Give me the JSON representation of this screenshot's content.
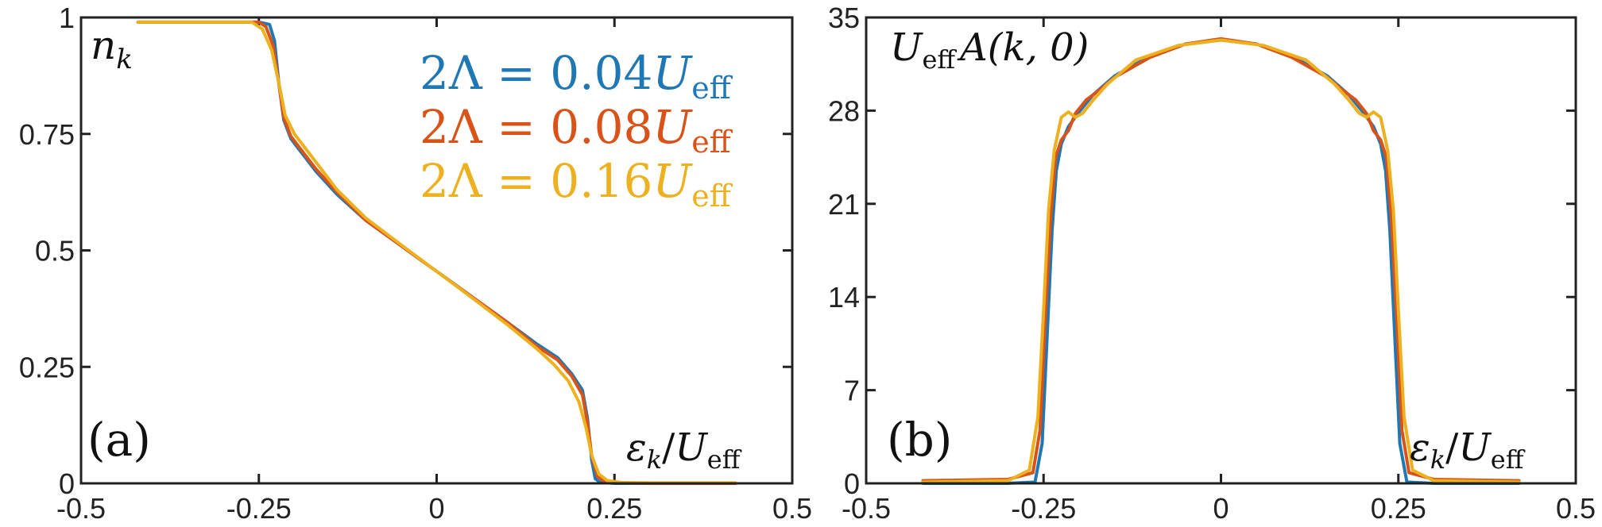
{
  "chart_data": [
    {
      "type": "line",
      "panel_label": "(a)",
      "ylabel": "n_k",
      "ylabel_main": "n",
      "ylabel_sub": "k",
      "xlabel": "ε_k/U_eff",
      "xlabel_main": "ε",
      "xlabel_sub": "k",
      "xlabel_slash": "/",
      "xlabel_U": "U",
      "xlabel_eff": "eff",
      "xlim": [
        -0.5,
        0.5
      ],
      "ylim": [
        0,
        1
      ],
      "xticks": [
        "-0.5",
        "-0.25",
        "0",
        "0.25",
        "0.5"
      ],
      "xtick_values": [
        -0.5,
        -0.25,
        0,
        0.25,
        0.5
      ],
      "yticks": [
        "0",
        "0.25",
        "0.5",
        "0.75",
        "1"
      ],
      "ytick_values": [
        0,
        0.25,
        0.5,
        0.75,
        1
      ],
      "grid": false,
      "legend_position": "top-right",
      "legend": [
        {
          "prefix": "2Λ = ",
          "value": "0.04",
          "unit": "U",
          "sub": "eff",
          "color": "#1f77b4"
        },
        {
          "prefix": "2Λ = ",
          "value": "0.08",
          "unit": "U",
          "sub": "eff",
          "color": "#d95319"
        },
        {
          "prefix": "2Λ = ",
          "value": "0.16",
          "unit": "U",
          "sub": "eff",
          "color": "#edb120"
        }
      ],
      "series": [
        {
          "color": "#1f77b4",
          "x": [
            -0.42,
            -0.3,
            -0.25,
            -0.235,
            -0.228,
            -0.222,
            -0.215,
            -0.205,
            -0.19,
            -0.17,
            -0.14,
            -0.1,
            -0.05,
            0,
            0.05,
            0.1,
            0.14,
            0.17,
            0.19,
            0.205,
            0.212,
            0.218,
            0.223,
            0.23,
            0.25,
            0.3,
            0.42
          ],
          "y": [
            0.99,
            0.99,
            0.99,
            0.985,
            0.95,
            0.86,
            0.78,
            0.74,
            0.71,
            0.67,
            0.62,
            0.565,
            0.51,
            0.455,
            0.4,
            0.345,
            0.3,
            0.27,
            0.235,
            0.2,
            0.14,
            0.05,
            0.01,
            0.002,
            0,
            0,
            0
          ]
        },
        {
          "color": "#d95319",
          "x": [
            -0.42,
            -0.3,
            -0.25,
            -0.24,
            -0.23,
            -0.222,
            -0.215,
            -0.205,
            -0.19,
            -0.17,
            -0.14,
            -0.1,
            -0.05,
            0,
            0.05,
            0.1,
            0.14,
            0.17,
            0.19,
            0.205,
            0.212,
            0.218,
            0.226,
            0.236,
            0.25,
            0.3,
            0.42
          ],
          "y": [
            0.99,
            0.99,
            0.99,
            0.98,
            0.94,
            0.86,
            0.785,
            0.745,
            0.715,
            0.675,
            0.625,
            0.565,
            0.51,
            0.455,
            0.4,
            0.345,
            0.295,
            0.265,
            0.23,
            0.19,
            0.13,
            0.06,
            0.015,
            0.004,
            0.001,
            0,
            0
          ]
        },
        {
          "color": "#edb120",
          "x": [
            -0.42,
            -0.3,
            -0.26,
            -0.245,
            -0.232,
            -0.222,
            -0.213,
            -0.2,
            -0.185,
            -0.165,
            -0.14,
            -0.1,
            -0.05,
            0,
            0.05,
            0.1,
            0.14,
            0.165,
            0.185,
            0.2,
            0.21,
            0.218,
            0.228,
            0.24,
            0.26,
            0.3,
            0.42
          ],
          "y": [
            0.99,
            0.99,
            0.99,
            0.975,
            0.93,
            0.86,
            0.79,
            0.75,
            0.72,
            0.68,
            0.63,
            0.57,
            0.512,
            0.455,
            0.398,
            0.34,
            0.29,
            0.255,
            0.22,
            0.175,
            0.12,
            0.06,
            0.02,
            0.006,
            0.002,
            0.001,
            0.001
          ]
        }
      ]
    },
    {
      "type": "line",
      "panel_label": "(b)",
      "ylabel": "U_eff A(k,0)",
      "ylabel_U": "U",
      "ylabel_eff": "eff",
      "ylabel_A": "A(k, 0)",
      "xlabel": "ε_k/U_eff",
      "xlabel_main": "ε",
      "xlabel_sub": "k",
      "xlabel_slash": "/",
      "xlabel_U": "U",
      "xlabel_eff": "eff",
      "xlim": [
        -0.5,
        0.5
      ],
      "ylim": [
        0,
        35
      ],
      "xticks": [
        "-0.5",
        "-0.25",
        "0",
        "0.25",
        "0.5"
      ],
      "xtick_values": [
        -0.5,
        -0.25,
        0,
        0.25,
        0.5
      ],
      "yticks": [
        "0",
        "7",
        "14",
        "21",
        "28",
        "35"
      ],
      "ytick_values": [
        0,
        7,
        14,
        21,
        28,
        35
      ],
      "grid": false,
      "series": [
        {
          "color": "#1f77b4",
          "x": [
            -0.42,
            -0.3,
            -0.262,
            -0.252,
            -0.245,
            -0.238,
            -0.232,
            -0.225,
            -0.215,
            -0.2,
            -0.18,
            -0.15,
            -0.1,
            -0.05,
            0,
            0.05,
            0.1,
            0.15,
            0.18,
            0.2,
            0.215,
            0.225,
            0.232,
            0.238,
            0.245,
            0.252,
            0.262,
            0.3,
            0.42
          ],
          "y": [
            0,
            0,
            0.1,
            3,
            11,
            19,
            23.5,
            25.5,
            26.8,
            27.9,
            29.2,
            30.6,
            32.1,
            33,
            33.3,
            33,
            32.1,
            30.6,
            29.2,
            27.9,
            26.8,
            25.5,
            23.5,
            19,
            11,
            3,
            0.1,
            0,
            0
          ]
        },
        {
          "color": "#d95319",
          "x": [
            -0.42,
            -0.3,
            -0.265,
            -0.255,
            -0.248,
            -0.24,
            -0.233,
            -0.225,
            -0.215,
            -0.205,
            -0.19,
            -0.17,
            -0.15,
            -0.1,
            -0.05,
            0,
            0.05,
            0.1,
            0.15,
            0.17,
            0.19,
            0.205,
            0.215,
            0.225,
            0.233,
            0.24,
            0.248,
            0.255,
            0.265,
            0.3,
            0.42
          ],
          "y": [
            0.2,
            0.3,
            0.8,
            4,
            12,
            20,
            24.5,
            25.8,
            26.5,
            27.8,
            28.8,
            29.6,
            30.5,
            32,
            33,
            33.4,
            33,
            32,
            30.5,
            29.6,
            28.8,
            27.8,
            26.5,
            25.8,
            24.5,
            20,
            12,
            4,
            0.8,
            0.3,
            0.2
          ]
        },
        {
          "color": "#edb120",
          "x": [
            -0.42,
            -0.3,
            -0.27,
            -0.258,
            -0.25,
            -0.243,
            -0.235,
            -0.225,
            -0.215,
            -0.205,
            -0.195,
            -0.18,
            -0.16,
            -0.12,
            -0.06,
            0,
            0.06,
            0.12,
            0.16,
            0.18,
            0.195,
            0.205,
            0.215,
            0.225,
            0.235,
            0.243,
            0.25,
            0.258,
            0.27,
            0.3,
            0.42
          ],
          "y": [
            0.1,
            0.2,
            1,
            5,
            13,
            20.5,
            25,
            27.5,
            27.9,
            27.5,
            27.8,
            28.8,
            30,
            31.8,
            32.9,
            33.3,
            32.9,
            31.8,
            30,
            28.8,
            27.8,
            27.5,
            27.9,
            27.5,
            25,
            20.5,
            13,
            5,
            1,
            0.2,
            0.1
          ]
        }
      ]
    }
  ]
}
